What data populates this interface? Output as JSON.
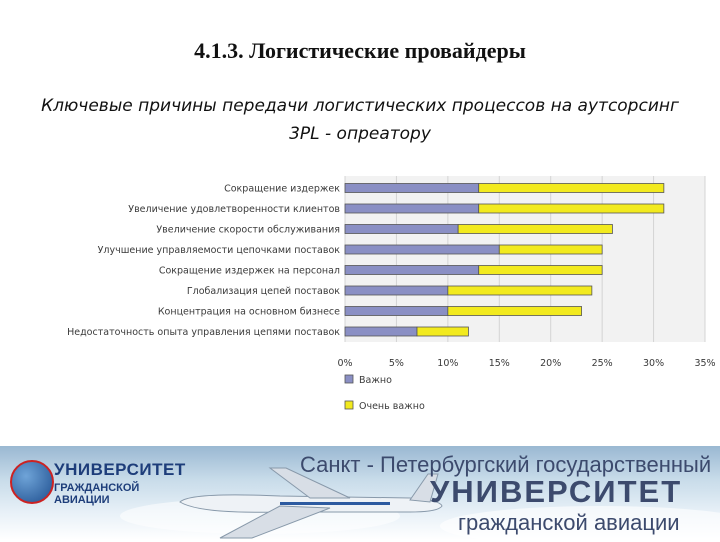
{
  "slide": {
    "title": "4.1.3. Логистические провайдеры",
    "subtitle": "Ключевые причины передачи логистических процессов на аутсорсинг 3PL - опреатору"
  },
  "chart_data": {
    "type": "bar",
    "orientation": "horizontal",
    "stacked": true,
    "categories": [
      "Сокращение издержек",
      "Увеличение удовлетворенности клиентов",
      "Увеличение скорости обслуживания",
      "Улучшение управляемости цепочками поставок",
      "Сокращение издержек на персонал",
      "Глобализация цепей поставок",
      "Концентрация на основном бизнесе",
      "Недостаточность опыта управления цепями поставок"
    ],
    "series": [
      {
        "name": "Важно",
        "color": "#8a8fc4",
        "values": [
          13,
          13,
          11,
          15,
          13,
          10,
          10,
          7
        ]
      },
      {
        "name": "Очень важно",
        "color": "#f2ea1e",
        "values": [
          18,
          18,
          15,
          10,
          12,
          14,
          13,
          5
        ]
      }
    ],
    "xlim": [
      0,
      35
    ],
    "xticks": [
      "0%",
      "5%",
      "10%",
      "15%",
      "20%",
      "25%",
      "30%",
      "35%"
    ],
    "grid": true,
    "legend_position": "bottom-left"
  },
  "footer": {
    "logo_top": "УНИВЕРСИТЕТ",
    "logo_bottom": "ГРАЖДАНСКОЙ АВИАЦИИ",
    "line1": "Санкт - Петербургский государственный",
    "line2": "УНИВЕРСИТЕТ",
    "line3": "гражданской авиации"
  }
}
